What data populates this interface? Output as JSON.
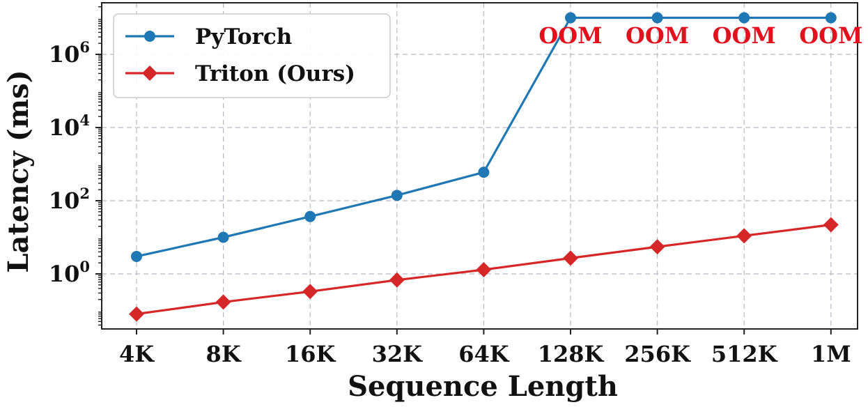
{
  "chart_data": {
    "type": "line",
    "xlabel": "Sequence Length",
    "ylabel": "Latency (ms)",
    "yscale": "log",
    "ylim": [
      0.01,
      30000000
    ],
    "grid": true,
    "legend_position": "top-left",
    "categories": [
      "4K",
      "8K",
      "16K",
      "32K",
      "64K",
      "128K",
      "256K",
      "512K",
      "1M"
    ],
    "yticks": [
      {
        "value": 1,
        "base": "10",
        "exp": "0"
      },
      {
        "value": 100,
        "base": "10",
        "exp": "2"
      },
      {
        "value": 10000,
        "base": "10",
        "exp": "4"
      },
      {
        "value": 1000000,
        "base": "10",
        "exp": "6"
      }
    ],
    "series": [
      {
        "name": "PyTorch",
        "color": "#1f77b4",
        "marker": "circle",
        "values": [
          3.0,
          10.0,
          37.0,
          140.0,
          600.0,
          10000000,
          10000000,
          10000000,
          10000000
        ]
      },
      {
        "name": "Triton (Ours)",
        "color": "#d62728",
        "marker": "diamond",
        "values": [
          0.08,
          0.17,
          0.33,
          0.68,
          1.3,
          2.7,
          5.5,
          11.0,
          22.0
        ]
      }
    ],
    "annotations": [
      {
        "text": "OOM",
        "category": "128K",
        "color": "#e3101e"
      },
      {
        "text": "OOM",
        "category": "256K",
        "color": "#e3101e"
      },
      {
        "text": "OOM",
        "category": "512K",
        "color": "#e3101e"
      },
      {
        "text": "OOM",
        "category": "1M",
        "color": "#e3101e"
      }
    ]
  }
}
